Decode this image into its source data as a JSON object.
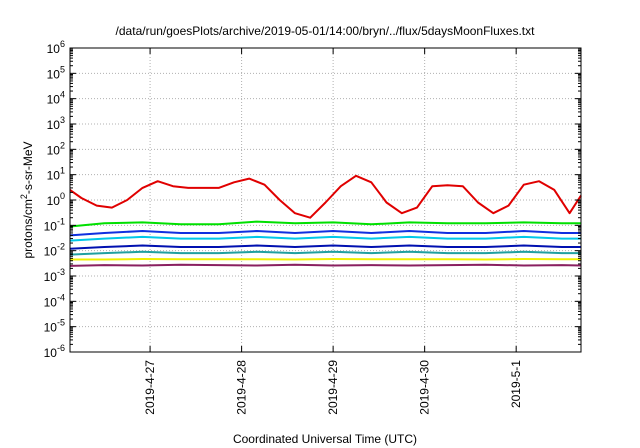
{
  "chart_data": {
    "type": "line",
    "title": "/data/run/goesPlots/archive/2019-05-01/14:00/bryn/../flux/5daysMoonFluxes.txt",
    "xlabel": "Coordinated Universal Time (UTC)",
    "ylabel": "protons/cm²-s-sr-MeV",
    "y_scale": "log",
    "ylim": [
      1e-06,
      1000000.0
    ],
    "xlim": [
      "2019-04-26 03:00",
      "2019-05-01 17:00"
    ],
    "x_ticks": [
      "2019-4-27",
      "2019-4-28",
      "2019-4-29",
      "2019-4-30",
      "2019-5-1"
    ],
    "y_ticks": [
      {
        "base": "10",
        "exp": "-6"
      },
      {
        "base": "10",
        "exp": "-5"
      },
      {
        "base": "10",
        "exp": "-4"
      },
      {
        "base": "10",
        "exp": "-3"
      },
      {
        "base": "10",
        "exp": "-2"
      },
      {
        "base": "10",
        "exp": "-1"
      },
      {
        "base": "10",
        "exp": "0"
      },
      {
        "base": "10",
        "exp": "1"
      },
      {
        "base": "10",
        "exp": "2"
      },
      {
        "base": "10",
        "exp": "3"
      },
      {
        "base": "10",
        "exp": "4"
      },
      {
        "base": "10",
        "exp": "5"
      },
      {
        "base": "10",
        "exp": "6"
      }
    ],
    "grid": true,
    "legend": "none",
    "series": [
      {
        "color": "#e00000",
        "x": [
          "2019-04-26 03:00",
          "2019-04-26 06:00",
          "2019-04-26 10:00",
          "2019-04-26 14:00",
          "2019-04-26 18:00",
          "2019-04-26 22:00",
          "2019-04-27 02:00",
          "2019-04-27 06:00",
          "2019-04-27 10:00",
          "2019-04-27 14:00",
          "2019-04-27 18:00",
          "2019-04-27 22:00",
          "2019-04-28 02:00",
          "2019-04-28 06:00",
          "2019-04-28 10:00",
          "2019-04-28 14:00",
          "2019-04-28 18:00",
          "2019-04-28 22:00",
          "2019-04-29 02:00",
          "2019-04-29 06:00",
          "2019-04-29 10:00",
          "2019-04-29 14:00",
          "2019-04-29 18:00",
          "2019-04-29 22:00",
          "2019-04-30 02:00",
          "2019-04-30 06:00",
          "2019-04-30 10:00",
          "2019-04-30 14:00",
          "2019-04-30 18:00",
          "2019-04-30 22:00",
          "2019-05-01 02:00",
          "2019-05-01 06:00",
          "2019-05-01 10:00",
          "2019-05-01 14:00",
          "2019-05-01 17:00"
        ],
        "y": [
          2.5,
          1.2,
          0.6,
          0.5,
          1.0,
          3.0,
          5.5,
          3.5,
          3.0,
          3.0,
          3.0,
          5.0,
          7.0,
          4.0,
          1.0,
          0.3,
          0.2,
          0.8,
          3.5,
          9.0,
          5.0,
          0.8,
          0.3,
          0.5,
          3.5,
          3.8,
          3.5,
          0.8,
          0.3,
          0.6,
          4.0,
          5.5,
          2.5,
          0.3,
          1.5
        ]
      },
      {
        "color": "#00e000",
        "x": [
          "2019-04-26 03:00",
          "2019-04-26 12:00",
          "2019-04-26 22:00",
          "2019-04-27 08:00",
          "2019-04-27 18:00",
          "2019-04-28 04:00",
          "2019-04-28 14:00",
          "2019-04-29 00:00",
          "2019-04-29 10:00",
          "2019-04-29 20:00",
          "2019-04-30 06:00",
          "2019-04-30 16:00",
          "2019-05-01 02:00",
          "2019-05-01 12:00",
          "2019-05-01 17:00"
        ],
        "y": [
          0.09,
          0.12,
          0.13,
          0.11,
          0.11,
          0.14,
          0.12,
          0.13,
          0.11,
          0.13,
          0.12,
          0.12,
          0.13,
          0.12,
          0.12
        ]
      },
      {
        "color": "#1030e0",
        "x": [
          "2019-04-26 03:00",
          "2019-04-26 12:00",
          "2019-04-26 22:00",
          "2019-04-27 08:00",
          "2019-04-27 18:00",
          "2019-04-28 04:00",
          "2019-04-28 14:00",
          "2019-04-29 00:00",
          "2019-04-29 10:00",
          "2019-04-29 20:00",
          "2019-04-30 06:00",
          "2019-04-30 16:00",
          "2019-05-01 02:00",
          "2019-05-01 12:00",
          "2019-05-01 17:00"
        ],
        "y": [
          0.04,
          0.05,
          0.06,
          0.05,
          0.05,
          0.06,
          0.05,
          0.06,
          0.05,
          0.06,
          0.05,
          0.05,
          0.06,
          0.05,
          0.05
        ]
      },
      {
        "color": "#00c8e8",
        "x": [
          "2019-04-26 03:00",
          "2019-04-26 12:00",
          "2019-04-26 22:00",
          "2019-04-27 08:00",
          "2019-04-27 18:00",
          "2019-04-28 04:00",
          "2019-04-28 14:00",
          "2019-04-29 00:00",
          "2019-04-29 10:00",
          "2019-04-29 20:00",
          "2019-04-30 06:00",
          "2019-04-30 16:00",
          "2019-05-01 02:00",
          "2019-05-01 12:00",
          "2019-05-01 17:00"
        ],
        "y": [
          0.025,
          0.03,
          0.035,
          0.03,
          0.03,
          0.035,
          0.03,
          0.035,
          0.03,
          0.035,
          0.03,
          0.03,
          0.035,
          0.03,
          0.03
        ]
      },
      {
        "color": "#0010b0",
        "x": [
          "2019-04-26 03:00",
          "2019-04-26 12:00",
          "2019-04-26 22:00",
          "2019-04-27 08:00",
          "2019-04-27 18:00",
          "2019-04-28 04:00",
          "2019-04-28 14:00",
          "2019-04-29 00:00",
          "2019-04-29 10:00",
          "2019-04-29 20:00",
          "2019-04-30 06:00",
          "2019-04-30 16:00",
          "2019-05-01 02:00",
          "2019-05-01 12:00",
          "2019-05-01 17:00"
        ],
        "y": [
          0.012,
          0.014,
          0.016,
          0.014,
          0.014,
          0.016,
          0.014,
          0.016,
          0.014,
          0.016,
          0.014,
          0.014,
          0.016,
          0.014,
          0.014
        ]
      },
      {
        "color": "#20a0a0",
        "x": [
          "2019-04-26 03:00",
          "2019-04-26 12:00",
          "2019-04-26 22:00",
          "2019-04-27 08:00",
          "2019-04-27 18:00",
          "2019-04-28 04:00",
          "2019-04-28 14:00",
          "2019-04-29 00:00",
          "2019-04-29 10:00",
          "2019-04-29 20:00",
          "2019-04-30 06:00",
          "2019-04-30 16:00",
          "2019-05-01 02:00",
          "2019-05-01 12:00",
          "2019-05-01 17:00"
        ],
        "y": [
          0.007,
          0.008,
          0.009,
          0.008,
          0.008,
          0.009,
          0.008,
          0.009,
          0.008,
          0.009,
          0.008,
          0.008,
          0.009,
          0.008,
          0.008
        ]
      },
      {
        "color": "#f0f000",
        "x": [
          "2019-04-26 03:00",
          "2019-04-26 12:00",
          "2019-04-26 22:00",
          "2019-04-27 08:00",
          "2019-04-27 18:00",
          "2019-04-28 04:00",
          "2019-04-28 14:00",
          "2019-04-29 00:00",
          "2019-04-29 10:00",
          "2019-04-29 20:00",
          "2019-04-30 06:00",
          "2019-04-30 16:00",
          "2019-05-01 02:00",
          "2019-05-01 12:00",
          "2019-05-01 17:00"
        ],
        "y": [
          0.0045,
          0.0045,
          0.0047,
          0.0046,
          0.0046,
          0.0046,
          0.0045,
          0.0047,
          0.0046,
          0.0046,
          0.0046,
          0.0045,
          0.0047,
          0.0046,
          0.0046
        ]
      },
      {
        "color": "#8a2060",
        "x": [
          "2019-04-26 03:00",
          "2019-04-26 12:00",
          "2019-04-26 22:00",
          "2019-04-27 08:00",
          "2019-04-27 18:00",
          "2019-04-28 04:00",
          "2019-04-28 14:00",
          "2019-04-29 00:00",
          "2019-04-29 10:00",
          "2019-04-29 20:00",
          "2019-04-30 06:00",
          "2019-04-30 16:00",
          "2019-05-01 02:00",
          "2019-05-01 12:00",
          "2019-05-01 17:00"
        ],
        "y": [
          0.0025,
          0.0027,
          0.0026,
          0.0028,
          0.0027,
          0.0026,
          0.0028,
          0.0026,
          0.0027,
          0.0026,
          0.0027,
          0.0028,
          0.0026,
          0.0027,
          0.0026
        ]
      }
    ]
  }
}
